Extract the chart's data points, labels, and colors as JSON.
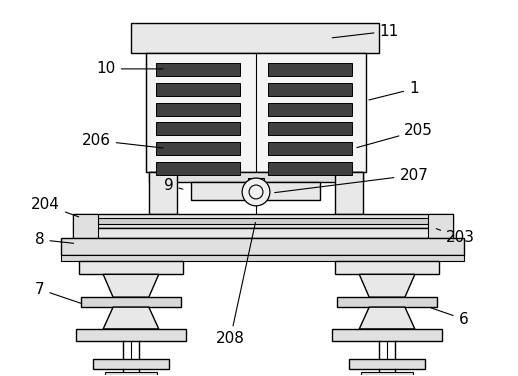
{
  "bg_color": "#ffffff",
  "lc": "#000000",
  "fc_light": "#f0f0f0",
  "fc_mid": "#d8d8d8",
  "fc_dark": "#555555",
  "fc_slot": "#404040"
}
